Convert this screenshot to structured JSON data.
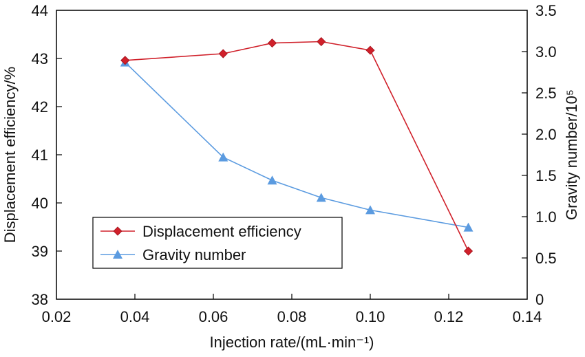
{
  "chart_data": {
    "type": "line",
    "title": "",
    "xlabel": "Injection rate/(mL·min⁻¹)",
    "ylabel": "Displacement efficiency/%",
    "y2label": "Gravity number/10⁵",
    "xlim": [
      0.02,
      0.14
    ],
    "ylim": [
      38,
      44
    ],
    "y2lim": [
      0,
      3.5
    ],
    "xticks": [
      "0.02",
      "0.04",
      "0.06",
      "0.08",
      "0.10",
      "0.12",
      "0.14"
    ],
    "yticks": [
      "38",
      "39",
      "40",
      "41",
      "42",
      "43",
      "44"
    ],
    "y2ticks": [
      "0",
      "0.5",
      "1.0",
      "1.5",
      "2.0",
      "2.5",
      "3.0",
      "3.5"
    ],
    "grid": false,
    "legend_position": "bottom-left",
    "x": [
      0.0375,
      0.0625,
      0.075,
      0.0875,
      0.1,
      0.125
    ],
    "series": [
      {
        "name": "Displacement efficiency",
        "axis": "left",
        "marker": "diamond",
        "color": "#d0202a",
        "values": [
          42.96,
          43.1,
          43.32,
          43.35,
          43.17,
          39.0
        ]
      },
      {
        "name": "Gravity number",
        "axis": "right",
        "marker": "triangle",
        "color": "#5b9be0",
        "values": [
          2.87,
          1.72,
          1.44,
          1.23,
          1.08,
          0.87
        ]
      }
    ]
  }
}
